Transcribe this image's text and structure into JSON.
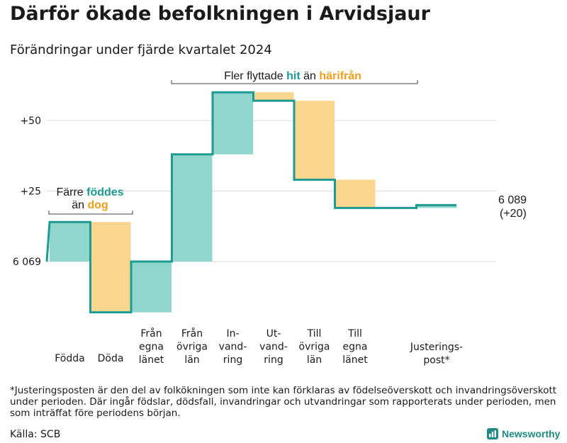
{
  "title": "Därför ökade befolkningen i Arvidsjaur",
  "subtitle": "Förändringar under fjärde kvartalet 2024",
  "chart_data": {
    "type": "waterfall",
    "baseline_label": "6 069",
    "baseline_value": 6069,
    "y_ticks": [
      {
        "value": 0,
        "label": "6 069"
      },
      {
        "value": 25,
        "label": "+25"
      },
      {
        "value": 50,
        "label": "+50"
      }
    ],
    "ylim": [
      -18,
      60
    ],
    "steps": [
      {
        "label_lines": [
          "Födda"
        ],
        "delta": 14,
        "kind": "increase"
      },
      {
        "label_lines": [
          "Döda"
        ],
        "delta": -32,
        "kind": "decrease"
      },
      {
        "label_lines": [
          "Från",
          "egna",
          "länet"
        ],
        "delta": 18,
        "kind": "increase"
      },
      {
        "label_lines": [
          "Från",
          "övriga",
          "län"
        ],
        "delta": 38,
        "kind": "increase"
      },
      {
        "label_lines": [
          "In-",
          "vand-",
          "ring"
        ],
        "delta": 22,
        "kind": "increase"
      },
      {
        "label_lines": [
          "Ut-",
          "vand-",
          "ring"
        ],
        "delta": -3,
        "kind": "decrease"
      },
      {
        "label_lines": [
          "Till",
          "övriga",
          "län"
        ],
        "delta": -28,
        "kind": "decrease"
      },
      {
        "label_lines": [
          "Till",
          "egna",
          "länet"
        ],
        "delta": -10,
        "kind": "decrease"
      },
      {
        "label_lines": [],
        "delta": 0,
        "kind": "neutral"
      },
      {
        "label_lines": [
          "Justerings-",
          "post*"
        ],
        "delta": 1,
        "kind": "increase"
      }
    ],
    "end_value_label": "6 089",
    "end_change_label": "(+20)",
    "colors": {
      "increase": "#8fd6cc",
      "decrease": "#fbd68f",
      "line": "#1f9a92",
      "grid": "#dddddd"
    },
    "annotations": {
      "births": {
        "prefix": "Färre",
        "highlight1": "föddes",
        "middle": "än",
        "highlight2": "dog"
      },
      "migration": {
        "prefix": "Fler flyttade",
        "highlight1": "hit",
        "middle": "än",
        "highlight2": "härifrån"
      }
    }
  },
  "footnote": "*Justeringsposten är den del av folkökningen som inte kan förklaras av födelseöverskott och invandringsöverskott under perioden. Där ingår födslar, dödsfall, invandringar och utvandringar som rapporterats under perioden, men som inträffat före periodens början.",
  "source": "Källa: SCB",
  "brand": {
    "name": "Newsworthy",
    "icon": "bar-chart-icon",
    "color": "#1f8a82"
  }
}
